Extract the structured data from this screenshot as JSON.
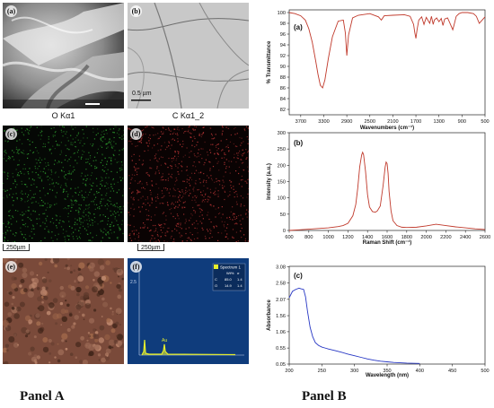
{
  "panel_a": {
    "label": "Panel A",
    "sem1": {
      "tag": "(a)"
    },
    "sem2": {
      "tag": "(b)",
      "scale": "0.5 µm"
    },
    "map_o": {
      "tag": "(c)",
      "title": "O Kα1",
      "scale": "250µm"
    },
    "map_c": {
      "tag": "(d)",
      "title": "C Kα1_2",
      "scale": "250µm"
    },
    "overlay": {
      "tag": "(e)"
    },
    "edx": {
      "tag": "(f)",
      "ytick_top": "2.5",
      "legend_title": "Spectrum 1",
      "legend_header": [
        "Wt%",
        "σ"
      ],
      "legend_rows": [
        [
          "C",
          "85.0",
          "1.4"
        ],
        [
          "O",
          "14.9",
          "1.4"
        ]
      ],
      "peaks": [
        "O",
        "Au"
      ]
    },
    "colors": {
      "map_o": "#2e9a2e",
      "map_c": "#b03333",
      "edx_bg": "#0f3c7c",
      "edx_peak": "#e6ef2c"
    }
  },
  "panel_b": {
    "label": "Panel B"
  },
  "chart_data": [
    {
      "id": "ftir",
      "tag": "(a)",
      "type": "line",
      "xlabel": "Wavenumbers (cm⁻¹)",
      "ylabel": "% Transmittance",
      "xlim": [
        3900,
        500
      ],
      "ylim": [
        81,
        100.5
      ],
      "xticks": [
        3700,
        3300,
        2900,
        2500,
        2100,
        1700,
        1300,
        900,
        500
      ],
      "yticks": [
        82,
        84,
        86,
        88,
        90,
        92,
        94,
        96,
        98,
        100
      ],
      "color": "#c0392b",
      "x": [
        3900,
        3800,
        3700,
        3620,
        3560,
        3500,
        3440,
        3400,
        3360,
        3320,
        3280,
        3220,
        3150,
        3050,
        2960,
        2925,
        2900,
        2870,
        2855,
        2800,
        2700,
        2500,
        2350,
        2300,
        2250,
        2100,
        1900,
        1800,
        1740,
        1720,
        1700,
        1680,
        1650,
        1600,
        1560,
        1520,
        1460,
        1430,
        1400,
        1380,
        1340,
        1300,
        1260,
        1230,
        1200,
        1150,
        1100,
        1060,
        1040,
        1000,
        950,
        900,
        800,
        700,
        650,
        600,
        550,
        500
      ],
      "y": [
        100,
        99.8,
        99.4,
        98.6,
        97,
        94.5,
        91,
        88.5,
        86.5,
        86,
        87.5,
        91.5,
        95.5,
        98.4,
        98.6,
        96.2,
        92,
        95.8,
        96.5,
        99,
        99.5,
        99.8,
        99.2,
        98.6,
        99.4,
        99.5,
        99.6,
        99.3,
        97.8,
        96.3,
        95.2,
        96.8,
        98.6,
        99.2,
        97.8,
        99.1,
        98,
        99.3,
        97.8,
        98.6,
        99,
        98.3,
        98.9,
        97.6,
        98.8,
        99,
        97.8,
        96.8,
        97.6,
        99.3,
        99.8,
        100,
        100,
        99.8,
        99.3,
        98,
        98.6,
        99.2
      ]
    },
    {
      "id": "raman",
      "tag": "(b)",
      "type": "line",
      "xlabel": "Raman Shift (cm⁻¹)",
      "ylabel": "Intensity (a.u.)",
      "xlim": [
        600,
        2600
      ],
      "ylim": [
        0,
        300
      ],
      "xticks": [
        600,
        800,
        1000,
        1200,
        1400,
        1600,
        1800,
        2000,
        2200,
        2400,
        2600
      ],
      "yticks": [
        0,
        50,
        100,
        150,
        200,
        250,
        300
      ],
      "color": "#c0392b",
      "x": [
        600,
        700,
        800,
        900,
        1000,
        1100,
        1150,
        1200,
        1250,
        1280,
        1300,
        1320,
        1340,
        1350,
        1360,
        1380,
        1400,
        1420,
        1450,
        1480,
        1500,
        1530,
        1560,
        1580,
        1590,
        1600,
        1610,
        1620,
        1640,
        1660,
        1700,
        1750,
        1800,
        1900,
        2000,
        2100,
        2200,
        2300,
        2400,
        2500,
        2600
      ],
      "y": [
        0,
        2,
        4,
        6,
        8,
        12,
        15,
        22,
        45,
        80,
        130,
        195,
        232,
        240,
        232,
        180,
        110,
        72,
        58,
        56,
        60,
        75,
        140,
        195,
        210,
        205,
        175,
        120,
        60,
        30,
        15,
        10,
        9,
        10,
        14,
        19,
        15,
        11,
        8,
        5,
        3
      ]
    },
    {
      "id": "uvvis",
      "tag": "(c)",
      "type": "line",
      "xlabel": "Wavelength (nm)",
      "ylabel": "Absorbance",
      "xlim": [
        200,
        500
      ],
      "ylim": [
        0.05,
        3.1
      ],
      "xticks": [
        200,
        250,
        300,
        350,
        400,
        450,
        500
      ],
      "yticks": [
        0.05,
        0.55,
        1.06,
        1.56,
        2.07,
        2.58,
        3.08
      ],
      "color": "#2636c4",
      "x": [
        200,
        205,
        210,
        215,
        218,
        222,
        225,
        228,
        232,
        236,
        240,
        245,
        250,
        255,
        260,
        270,
        280,
        290,
        300,
        310,
        320,
        330,
        340,
        350,
        360,
        380,
        400
      ],
      "y": [
        2.12,
        2.32,
        2.38,
        2.42,
        2.4,
        2.38,
        2.15,
        1.7,
        1.2,
        0.9,
        0.72,
        0.63,
        0.58,
        0.55,
        0.52,
        0.47,
        0.42,
        0.36,
        0.31,
        0.26,
        0.21,
        0.17,
        0.14,
        0.12,
        0.1,
        0.08,
        0.07
      ]
    }
  ]
}
